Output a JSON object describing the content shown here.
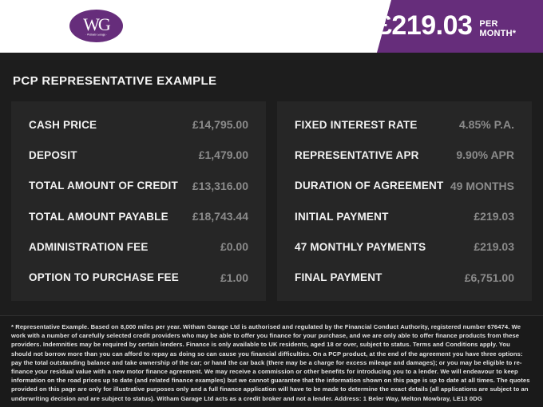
{
  "header": {
    "logo": {
      "initials": "WG",
      "name": "· Witham Garage ·"
    },
    "price_banner": {
      "amount": "£219.03",
      "period": "PER MONTH*"
    }
  },
  "title": "PCP REPRESENTATIVE EXAMPLE",
  "panels": {
    "left": {
      "rows": [
        {
          "label": "CASH PRICE",
          "value": "£14,795.00"
        },
        {
          "label": "DEPOSIT",
          "value": "£1,479.00"
        },
        {
          "label": "TOTAL AMOUNT OF CREDIT",
          "value": "£13,316.00"
        },
        {
          "label": "TOTAL AMOUNT PAYABLE",
          "value": "£18,743.44"
        },
        {
          "label": "ADMINISTRATION FEE",
          "value": "£0.00"
        },
        {
          "label": "OPTION TO PURCHASE FEE",
          "value": "£1.00"
        }
      ]
    },
    "right": {
      "rows": [
        {
          "label": "FIXED INTEREST RATE",
          "value": "4.85% P.A."
        },
        {
          "label": "REPRESENTATIVE APR",
          "value": "9.90% APR"
        },
        {
          "label": "DURATION OF AGREEMENT",
          "value": "49 MONTHS"
        },
        {
          "label": "INITIAL PAYMENT",
          "value": "£219.03"
        },
        {
          "label": "47 MONTHLY PAYMENTS",
          "value": "£219.03"
        },
        {
          "label": "FINAL PAYMENT",
          "value": "£6,751.00"
        }
      ]
    }
  },
  "footer": {
    "disclaimer": "* Representative Example. Based on 8,000 miles per year. Witham Garage Ltd is authorised and regulated by the Financial Conduct Authority, registered number 676474. We work with a number of carefully selected credit providers who may be able to offer you finance for your purchase, and we are only able to offer finance products from these providers. Indemnities may be required by certain lenders. Finance is only available to UK residents, aged 18 or over, subject to status. Terms and Conditions apply. You should not borrow more than you can afford to repay as doing so can cause you financial difficulties. On a PCP product, at the end of the agreement you have three options: pay the total outstanding balance and take ownership of the car; or hand the car back (there may be a charge for excess mileage and damages); or you may be eligible to re-finance your residual value with a new motor finance agreement. We may receive a commission or other benefits for introducing you to a lender. We will endeavour to keep information on the road prices up to date (and related finance examples) but we cannot guarantee that the information shown on this page is up to date at all times. The quotes provided on this page are only for illustrative purposes only and a full finance application will have to be made to determine the exact details (all applications are subject to an underwriting decision and are subject to status). Witham Garage Ltd acts as a credit broker and not a lender. Address: 1 Beler Way, Melton Mowbray, LE13 0DG"
  },
  "colors": {
    "accent_purple": "#662d7b",
    "page_background": "#1d1d1d",
    "panel_background": "#262626",
    "label_text": "#f2f2f2",
    "value_text": "#8b8b8b",
    "header_background": "#ffffff"
  }
}
